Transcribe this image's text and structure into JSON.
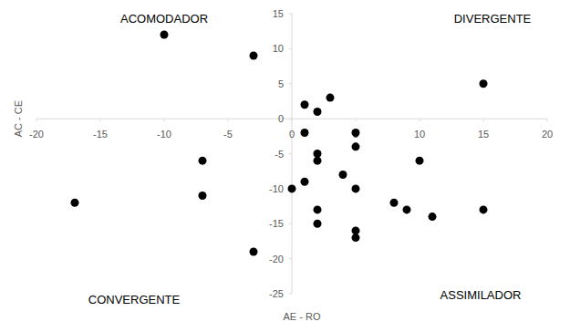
{
  "chart_data": {
    "type": "scatter",
    "x_label": "AE - RO",
    "y_label": "AC - CE",
    "annotations": [
      "ACOMODADOR",
      "DIVERGENTE",
      "CONVERGENTE",
      "ASSIMILADOR"
    ],
    "x": [
      -10,
      -3,
      -7,
      -7,
      -17,
      -3,
      1,
      3,
      2,
      1,
      5,
      5,
      2,
      2,
      4,
      1,
      0,
      5,
      10,
      8,
      9,
      11,
      2,
      2,
      5,
      5,
      15,
      15
    ],
    "values": [
      12,
      9,
      -6,
      -11,
      -12,
      -19,
      2,
      3,
      1,
      -2,
      -2,
      -4,
      -5,
      -6,
      -8,
      -9,
      -10,
      -10,
      -6,
      -12,
      -13,
      -14,
      -13,
      -15,
      -16,
      -17,
      -13,
      5
    ],
    "color": "#000000",
    "marker": "circle",
    "xlim": [
      -20,
      20
    ],
    "ylim": [
      -25,
      15
    ],
    "xticks": [
      -20,
      -15,
      -10,
      -5,
      0,
      5,
      10,
      15,
      20
    ],
    "yticks": [
      -25,
      -20,
      -15,
      -10,
      -5,
      0,
      5,
      10,
      15
    ],
    "grid": false
  }
}
